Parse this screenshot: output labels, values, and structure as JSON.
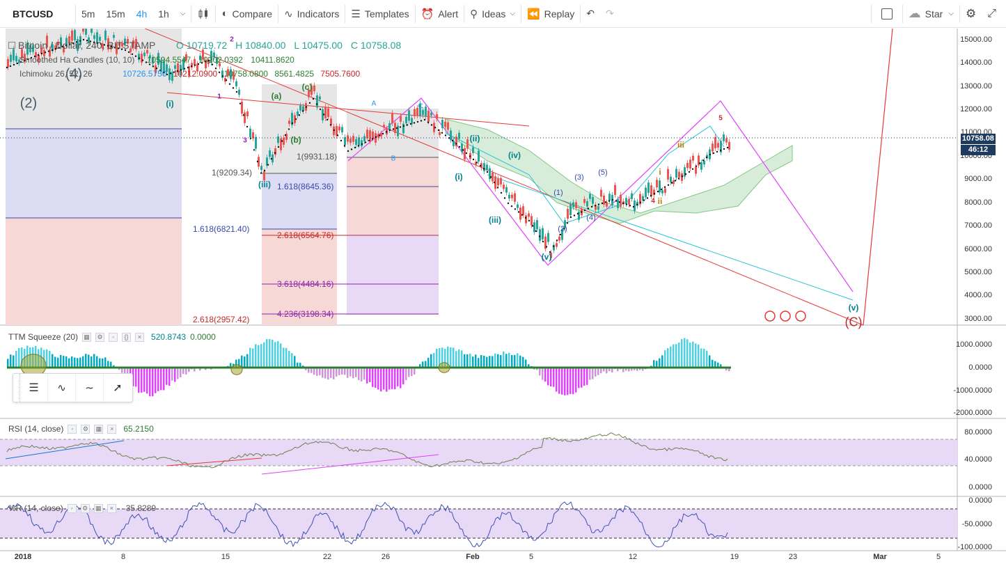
{
  "toolbar": {
    "symbol": "BTCUSD",
    "intervals": [
      "5m",
      "15m",
      "4h",
      "1h"
    ],
    "active_interval": "4h",
    "compare": "Compare",
    "indicators": "Indicators",
    "templates": "Templates",
    "alert": "Alert",
    "ideas": "Ideas",
    "replay": "Replay",
    "star": "Star"
  },
  "main_legend": {
    "title": "Bitcoin / Dollar, 240, BITSTAMP",
    "open": "O 10719.72",
    "high": "H 10840.00",
    "low": "L 10475.00",
    "close": "C 10758.08",
    "smoothed": "Smoothed Ha Candles (10, 10)",
    "smoothed_values": [
      "10594.5547",
      "10202.0392",
      "10411.8620"
    ],
    "ichimoku": "Ichimoku 26, 52, 26",
    "ichimoku_values": [
      "10726.5750",
      "10212.0900",
      "10758.0800",
      "8561.4825",
      "7505.7600"
    ]
  },
  "price_axis": {
    "labels": [
      "15000.00",
      "14000.00",
      "13000.00",
      "12000.00",
      "11000.00",
      "10000.00",
      "9000.00",
      "8000.00",
      "7000.00",
      "6000.00",
      "5000.00",
      "4000.00",
      "3000.00"
    ],
    "last_price": "10758.08",
    "countdown": "46:12"
  },
  "ttm": {
    "name": "TTM Squeeze (20)",
    "v1": "520.8743",
    "v2": "0.0000",
    "axis": [
      "1000.0000",
      "0.0000",
      "-1000.0000",
      "-2000.0000"
    ]
  },
  "rsi": {
    "name": "RSI (14, close)",
    "value": "65.2150",
    "axis": [
      "80.0000",
      "40.0000",
      "0.0000"
    ]
  },
  "wr": {
    "name": "%R (14, close)",
    "value": "-35.8289",
    "axis": [
      "0.0000",
      "-50.0000",
      "-100.0000"
    ]
  },
  "time_axis": [
    "2018",
    "8",
    "15",
    "22",
    "26",
    "Feb",
    "5",
    "12",
    "19",
    "23",
    "Mar",
    "5"
  ],
  "fib_labels": [
    "1(9209.34)",
    "1(9931.18)",
    "1.618(8645.36)",
    "1.618(6821.40)",
    "2.618(6564.76)",
    "3.618(4484.16)",
    "4.236(3198.34)",
    "2.618(2957.42)"
  ],
  "wave_labels": [
    "(2)",
    "(4)",
    "(i)",
    "(iii)",
    "(ii)",
    "(iv)",
    "(v)",
    "(i)",
    "(iii)",
    "(a)",
    "(b)",
    "(c)",
    "(v)",
    "(C)",
    "1",
    "2",
    "3",
    "4",
    "5",
    "A",
    "B",
    "C",
    "iii",
    "ii",
    "i",
    "(1)",
    "(2)",
    "(3)",
    "(4)",
    "(5)"
  ],
  "colors": {
    "up": "#26a69a",
    "down": "#ef5350",
    "rsi_bg": "#e8d9f6",
    "price_tag": "#1e3a5f"
  }
}
